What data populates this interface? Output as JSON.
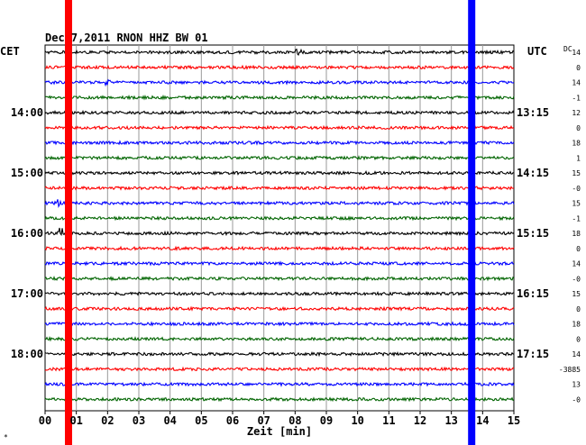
{
  "header": {
    "title": "Dec 7,2011   RNON HHZ BW 01",
    "left_zone": "CET",
    "right_zone": "UTC"
  },
  "right_scale_header": "DC",
  "chart_data": {
    "type": "line",
    "title": "Dec 7,2011   RNON HHZ BW 01",
    "xlabel": "Zeit [min]",
    "x_ticks": [
      "00",
      "01",
      "02",
      "03",
      "04",
      "05",
      "06",
      "07",
      "08",
      "09",
      "10",
      "11",
      "12",
      "13",
      "14",
      "15"
    ],
    "xlim": [
      0,
      15
    ],
    "traces_per_hour": 4,
    "trace_minutes": 15,
    "trace_colors": [
      "#000000",
      "#ff0000",
      "#0000ff",
      "#006400"
    ],
    "left_hour_labels": [
      {
        "trace": 4,
        "label": "14:00"
      },
      {
        "trace": 8,
        "label": "15:00"
      },
      {
        "trace": 12,
        "label": "16:00"
      },
      {
        "trace": 16,
        "label": "17:00"
      },
      {
        "trace": 20,
        "label": "18:00"
      }
    ],
    "right_hour_labels": [
      {
        "trace": 4,
        "label": "13:15"
      },
      {
        "trace": 8,
        "label": "14:15"
      },
      {
        "trace": 12,
        "label": "15:15"
      },
      {
        "trace": 16,
        "label": "16:15"
      },
      {
        "trace": 20,
        "label": "17:15"
      }
    ],
    "dc_offsets": [
      "14",
      "0",
      "14",
      "-1",
      "12",
      "0",
      "18",
      "1",
      "15",
      "-0",
      "15",
      "-1",
      "18",
      "0",
      "14",
      "-0",
      "15",
      "0",
      "18",
      "0",
      "14",
      "-3885",
      "13",
      "-0"
    ],
    "markers": [
      {
        "color": "#ff0000",
        "x_min": 0.75
      },
      {
        "color": "#0000ff",
        "x_min": 13.65
      }
    ],
    "events": [
      {
        "trace": 0,
        "x_min": 8.1,
        "amplitude": 2.0
      },
      {
        "trace": 12,
        "x_min": 0.5,
        "amplitude": 2.4
      },
      {
        "trace": 2,
        "x_min": 2.0,
        "amplitude": 1.4
      },
      {
        "trace": 10,
        "x_min": 0.4,
        "amplitude": 1.3
      }
    ],
    "footnote": "*"
  }
}
